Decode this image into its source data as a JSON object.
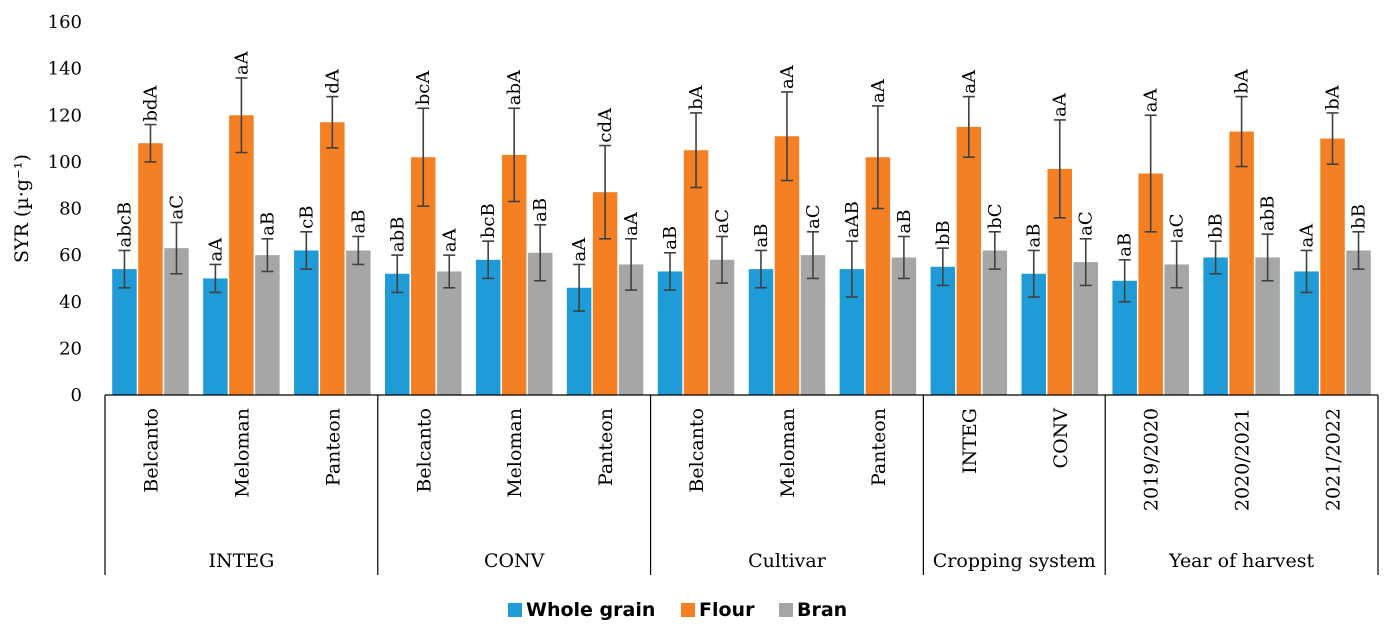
{
  "chart_data": {
    "type": "bar",
    "ylabel": "SYR (µ·g⁻¹)",
    "ylim": [
      0,
      160
    ],
    "yticks": [
      "0",
      "20",
      "40",
      "60",
      "80",
      "100",
      "120",
      "140",
      "160"
    ],
    "grid": false,
    "legend_position": "bottom",
    "colors": {
      "Whole grain": "#1f9bd7",
      "Flour": "#f57f23",
      "Bran": "#a6a6a6"
    },
    "groups": [
      {
        "label": "INTEG",
        "categories": [
          "Belcanto",
          "Meloman",
          "Panteon"
        ]
      },
      {
        "label": "CONV",
        "categories": [
          "Belcanto",
          "Meloman",
          "Panteon"
        ]
      },
      {
        "label": "Cultivar",
        "categories": [
          "Belcanto",
          "Meloman",
          "Panteon"
        ]
      },
      {
        "label": "Cropping system",
        "categories": [
          "INTEG",
          "CONV"
        ]
      },
      {
        "label": "Year of harvest",
        "categories": [
          "2019/2020",
          "2020/2021",
          "2021/2022"
        ]
      }
    ],
    "series": [
      {
        "name": "Whole grain",
        "values": [
          54,
          50,
          62,
          52,
          58,
          46,
          53,
          54,
          54,
          55,
          52,
          49,
          59,
          53
        ],
        "errors": [
          8,
          6,
          8,
          8,
          8,
          10,
          8,
          8,
          12,
          8,
          10,
          9,
          7,
          9
        ],
        "labels": [
          "abcB",
          "aA",
          "cB",
          "abB",
          "bcB",
          "aA",
          "aB",
          "aB",
          "aAB",
          "bB",
          "aB",
          "aB",
          "bB",
          "aA"
        ]
      },
      {
        "name": "Flour",
        "values": [
          108,
          120,
          117,
          102,
          103,
          87,
          105,
          111,
          102,
          115,
          97,
          95,
          113,
          110
        ],
        "errors": [
          8,
          16,
          11,
          21,
          20,
          20,
          16,
          19,
          22,
          13,
          21,
          25,
          15,
          11
        ],
        "labels": [
          "bdA",
          "aA",
          "dA",
          "bcA",
          "abA",
          "cdA",
          "bA",
          "aA",
          "aA",
          "aA",
          "aA",
          "aA",
          "bA",
          "bA"
        ]
      },
      {
        "name": "Bran",
        "values": [
          63,
          60,
          62,
          53,
          61,
          56,
          58,
          60,
          59,
          62,
          57,
          56,
          59,
          62
        ],
        "errors": [
          11,
          7,
          6,
          7,
          12,
          11,
          10,
          10,
          9,
          8,
          10,
          10,
          10,
          8
        ],
        "labels": [
          "aC",
          "aB",
          "aB",
          "aA",
          "aB",
          "aA",
          "aC",
          "aC",
          "aB",
          "bC",
          "aC",
          "aC",
          "abB",
          "bB"
        ]
      }
    ]
  }
}
